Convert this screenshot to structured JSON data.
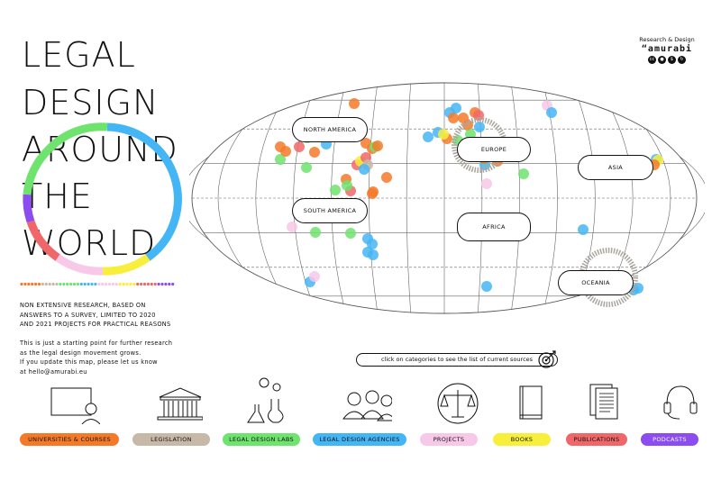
{
  "title": {
    "lines": [
      "LEGAL",
      "DESIGN",
      "AROUND",
      "THE",
      "WORLD"
    ]
  },
  "intro": {
    "paragraph1": [
      "NON EXTENSIVE RESEARCH, BASED ON",
      "ANSWERS TO A SURVEY, LIMITED TO 2020",
      "AND 2021 PROJECTS FOR PRACTICAL REASONS"
    ],
    "paragraph2": [
      "This is just a starting point for further research",
      "as the legal design movement grows.",
      "If you update this map, please let us know",
      "at hello@amurabi.eu"
    ]
  },
  "brand": {
    "tagline": "Research & Design",
    "name": "“amurabi",
    "license_icons": [
      "cc-icon",
      "by-icon",
      "nc-icon",
      "sa-icon"
    ]
  },
  "regions": {
    "north_america": "NORTH AMERICA",
    "south_america": "SOUTH AMERICA",
    "europe": "EUROPE",
    "africa": "AFRICA",
    "asia": "ASIA",
    "oceania": "OCEANIA"
  },
  "hint": "click on categories to see the list of current sources",
  "categories": [
    {
      "id": "universities",
      "label": "UNIVERSITIES & COURSES",
      "color": "#f47a2a",
      "icon": "classroom-icon"
    },
    {
      "id": "legislation",
      "label": "LEGISLATION",
      "color": "#c8b8a8",
      "icon": "courthouse-icon"
    },
    {
      "id": "labs",
      "label": "LEGAL DESIGN LABS",
      "color": "#6ee36e",
      "icon": "lab-icon"
    },
    {
      "id": "agencies",
      "label": "LEGAL DESIGN AGENCIES",
      "color": "#45b6f5",
      "icon": "people-icon"
    },
    {
      "id": "projects",
      "label": "PROJECTS",
      "color": "#f7c8e8",
      "icon": "scales-icon"
    },
    {
      "id": "books",
      "label": "BOOKS",
      "color": "#f8ef3c",
      "icon": "book-icon"
    },
    {
      "id": "publications",
      "label": "PUBLICATIONS",
      "color": "#f0676a",
      "icon": "documents-icon"
    },
    {
      "id": "podcasts",
      "label": "PODCASTS",
      "color": "#8b4cf0",
      "icon": "headphones-icon"
    }
  ]
}
